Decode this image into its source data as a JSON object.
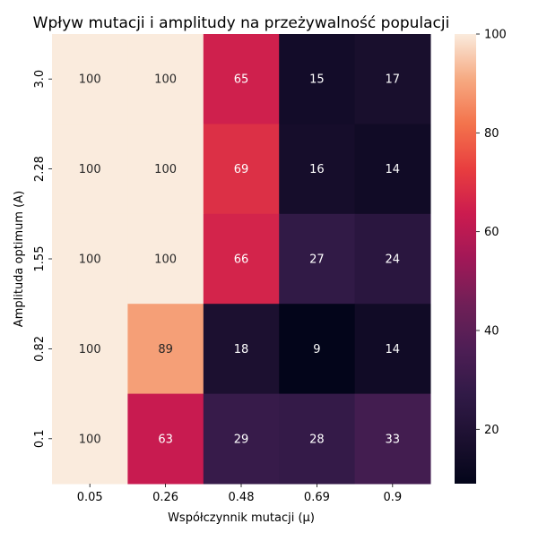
{
  "chart_data": {
    "type": "heatmap",
    "title": "Wpływ mutacji i amplitudy na przeżywalność populacji",
    "xlabel": "Współczynnik mutacji (μ)",
    "ylabel": "Amplituda optimum (A)",
    "x_categories": [
      "0.05",
      "0.26",
      "0.48",
      "0.69",
      "0.9"
    ],
    "y_categories": [
      "3.0",
      "2.28",
      "1.55",
      "0.82",
      "0.1"
    ],
    "values": [
      [
        100,
        100,
        65,
        15,
        17
      ],
      [
        100,
        100,
        69,
        16,
        14
      ],
      [
        100,
        100,
        66,
        27,
        24
      ],
      [
        100,
        89,
        18,
        9,
        14
      ],
      [
        100,
        63,
        29,
        28,
        33
      ]
    ],
    "colorbar": {
      "min": 9,
      "max": 100,
      "ticks": [
        20,
        40,
        60,
        80,
        100
      ],
      "colormap": "rocket"
    }
  }
}
